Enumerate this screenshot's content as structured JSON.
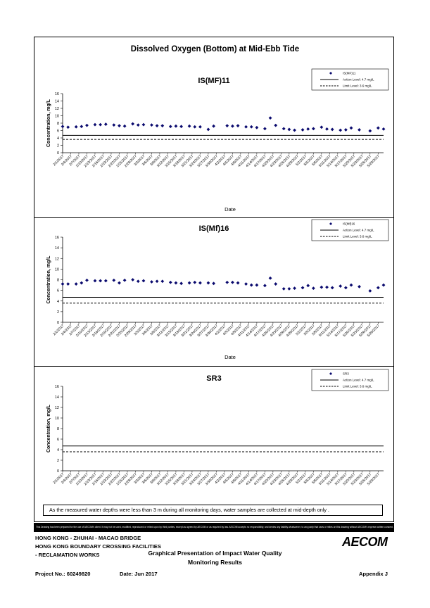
{
  "main_title": "Dissolved Oxygen (Bottom) at Mid-Ebb Tide",
  "note": "As the measured water depths were less than 3 m during all monitoring days, water samples are collected  at mid-depth only .",
  "disclaimer": "This Drawing has been prepared for the use of AECOM's client. It may not be used, modified, reproduced or relied upon by third parties, except as agreed by AECOM or as required by law. AECOM accepts no responsibility, and denies any liability whatsoever, to any party that uses or relies on this drawing without AECOM's express written consent.",
  "footer": {
    "line1": "HONG KONG - ZHUHAI - MACAO BRIDGE",
    "line2": "HONG KONG BOUNDARY CROSSING FACILITIES",
    "line3": "- RECLAMATION WORKS",
    "center1": "Graphical Presentation of Impact Water Quality",
    "center2": "Monitoring Results",
    "project": "Project No.: 60249820",
    "date": "Date: Jun 2017",
    "appendix": "Appendix J",
    "logo": "AECOM"
  },
  "colors": {
    "marker": "#0a0a6e",
    "line": "#000000"
  },
  "chart_data": [
    {
      "type": "scatter",
      "title": "IS(MF)11",
      "xlabel": "Date",
      "ylabel": "Concentration, mg/L",
      "ylim": [
        0,
        16
      ],
      "yticks": [
        0,
        2,
        4,
        6,
        8,
        10,
        12,
        14,
        16
      ],
      "x_tick_labels": [
        "2/1/2017",
        "2/4/2017",
        "2/7/2017",
        "2/10/2017",
        "2/13/2017",
        "2/16/2017",
        "2/19/2017",
        "2/22/2017",
        "2/25/2017",
        "2/28/2017",
        "3/3/2017",
        "3/6/2017",
        "3/9/2017",
        "3/12/2017",
        "3/15/2017",
        "3/18/2017",
        "3/21/2017",
        "3/24/2017",
        "3/27/2017",
        "3/30/2017",
        "4/2/2017",
        "4/5/2017",
        "4/8/2017",
        "4/11/2017",
        "4/14/2017",
        "4/17/2017",
        "4/20/2017",
        "4/23/2017",
        "4/26/2017",
        "4/29/2017",
        "5/2/2017",
        "5/5/2017",
        "5/8/2017",
        "5/11/2017",
        "5/14/2017",
        "5/17/2017",
        "5/20/2017",
        "5/23/2017",
        "5/26/2017",
        "5/29/2017"
      ],
      "legend": {
        "position": "top-right",
        "entries": [
          "IS(MF)11",
          "Action Level: 4.7 mg/L",
          "Limit Level: 3.6 mg/L"
        ]
      },
      "action_level": 4.7,
      "limit_level": 3.6,
      "series": [
        {
          "name": "IS(MF)11",
          "x": [
            "2/1/2017",
            "2/3/2017",
            "2/6/2017",
            "2/8/2017",
            "2/10/2017",
            "2/13/2017",
            "2/15/2017",
            "2/17/2017",
            "2/20/2017",
            "2/22/2017",
            "2/24/2017",
            "2/27/2017",
            "3/1/2017",
            "3/3/2017",
            "3/6/2017",
            "3/8/2017",
            "3/10/2017",
            "3/13/2017",
            "3/15/2017",
            "3/17/2017",
            "3/20/2017",
            "3/22/2017",
            "3/24/2017",
            "3/27/2017",
            "3/29/2017",
            "4/3/2017",
            "4/5/2017",
            "4/7/2017",
            "4/10/2017",
            "4/12/2017",
            "4/14/2017",
            "4/17/2017",
            "4/19/2017",
            "4/21/2017",
            "4/24/2017",
            "4/26/2017",
            "4/28/2017",
            "5/1/2017",
            "5/3/2017",
            "5/5/2017",
            "5/8/2017",
            "5/10/2017",
            "5/12/2017",
            "5/15/2017",
            "5/17/2017",
            "5/19/2017",
            "5/22/2017",
            "5/26/2017",
            "5/29/2017",
            "5/31/2017"
          ],
          "y": [
            7.1,
            6.9,
            7.0,
            7.1,
            7.4,
            7.6,
            7.6,
            7.7,
            7.5,
            7.3,
            7.2,
            7.8,
            7.5,
            7.6,
            7.5,
            7.3,
            7.3,
            7.1,
            7.2,
            7.1,
            7.2,
            7.0,
            7.0,
            6.3,
            7.2,
            7.3,
            7.2,
            7.3,
            7.0,
            7.0,
            6.8,
            6.5,
            9.4,
            7.4,
            6.5,
            6.3,
            6.1,
            6.2,
            6.4,
            6.5,
            6.9,
            6.4,
            6.3,
            6.1,
            6.2,
            6.7,
            6.2,
            5.9,
            6.7,
            6.4
          ]
        }
      ]
    },
    {
      "type": "scatter",
      "title": "IS(Mf)16",
      "xlabel": "Date",
      "ylabel": "Concentration, mg/L",
      "ylim": [
        0,
        16
      ],
      "yticks": [
        0,
        2,
        4,
        6,
        8,
        10,
        12,
        14,
        16
      ],
      "x_tick_labels": [
        "2/1/2017",
        "2/4/2017",
        "2/7/2017",
        "2/10/2017",
        "2/13/2017",
        "2/16/2017",
        "2/19/2017",
        "2/22/2017",
        "2/25/2017",
        "2/28/2017",
        "3/3/2017",
        "3/6/2017",
        "3/9/2017",
        "3/12/2017",
        "3/15/2017",
        "3/18/2017",
        "3/21/2017",
        "3/24/2017",
        "3/27/2017",
        "3/30/2017",
        "4/2/2017",
        "4/5/2017",
        "4/8/2017",
        "4/11/2017",
        "4/14/2017",
        "4/17/2017",
        "4/20/2017",
        "4/23/2017",
        "4/26/2017",
        "4/29/2017",
        "5/2/2017",
        "5/5/2017",
        "5/8/2017",
        "5/11/2017",
        "5/14/2017",
        "5/17/2017",
        "5/20/2017",
        "5/23/2017",
        "5/26/2017",
        "5/29/2017"
      ],
      "legend": {
        "position": "top-right",
        "entries": [
          "IS(Mf)16",
          "Action Level: 4.7 mg/L",
          "Limit Level: 3.6 mg/L"
        ]
      },
      "action_level": 4.7,
      "limit_level": 3.6,
      "series": [
        {
          "name": "IS(Mf)16",
          "x": [
            "2/1/2017",
            "2/3/2017",
            "2/6/2017",
            "2/8/2017",
            "2/10/2017",
            "2/13/2017",
            "2/15/2017",
            "2/17/2017",
            "2/20/2017",
            "2/22/2017",
            "2/24/2017",
            "2/27/2017",
            "3/1/2017",
            "3/3/2017",
            "3/6/2017",
            "3/8/2017",
            "3/10/2017",
            "3/13/2017",
            "3/15/2017",
            "3/17/2017",
            "3/20/2017",
            "3/22/2017",
            "3/24/2017",
            "3/27/2017",
            "3/29/2017",
            "4/3/2017",
            "4/5/2017",
            "4/7/2017",
            "4/10/2017",
            "4/12/2017",
            "4/14/2017",
            "4/17/2017",
            "4/19/2017",
            "4/21/2017",
            "4/24/2017",
            "4/26/2017",
            "4/28/2017",
            "5/1/2017",
            "5/3/2017",
            "5/5/2017",
            "5/8/2017",
            "5/10/2017",
            "5/12/2017",
            "5/15/2017",
            "5/17/2017",
            "5/19/2017",
            "5/22/2017",
            "5/26/2017",
            "5/29/2017",
            "5/31/2017"
          ],
          "y": [
            7.2,
            7.2,
            7.2,
            7.4,
            7.9,
            7.8,
            7.8,
            7.8,
            7.9,
            7.4,
            7.9,
            8.0,
            7.7,
            7.8,
            7.6,
            7.7,
            7.7,
            7.5,
            7.4,
            7.3,
            7.4,
            7.5,
            7.4,
            7.4,
            7.3,
            7.5,
            7.5,
            7.4,
            7.2,
            7.0,
            7.0,
            6.9,
            8.3,
            7.2,
            6.3,
            6.3,
            6.4,
            6.5,
            6.9,
            6.4,
            6.6,
            6.6,
            6.5,
            6.8,
            6.5,
            7.0,
            6.7,
            5.9,
            6.5,
            7.0
          ]
        }
      ]
    },
    {
      "type": "scatter",
      "title": "SR3",
      "xlabel": "",
      "ylabel": "Concentration, mg/L",
      "ylim": [
        0,
        16
      ],
      "yticks": [
        0,
        2,
        4,
        6,
        8,
        10,
        12,
        14,
        16
      ],
      "x_tick_labels": [
        "2/1/2017",
        "2/4/2017",
        "2/7/2017",
        "2/10/2017",
        "2/13/2017",
        "2/16/2017",
        "2/19/2017",
        "2/22/2017",
        "2/25/2017",
        "2/28/2017",
        "3/3/2017",
        "3/6/2017",
        "3/9/2017",
        "3/12/2017",
        "3/15/2017",
        "3/18/2017",
        "3/21/2017",
        "3/24/2017",
        "3/27/2017",
        "3/30/2017",
        "4/2/2017",
        "4/5/2017",
        "4/8/2017",
        "4/11/2017",
        "4/14/2017",
        "4/17/2017",
        "4/20/2017",
        "4/23/2017",
        "4/26/2017",
        "4/29/2017",
        "5/2/2017",
        "5/5/2017",
        "5/8/2017",
        "5/11/2017",
        "5/14/2017",
        "5/17/2017",
        "5/20/2017",
        "5/23/2017",
        "5/26/2017",
        "5/29/2017"
      ],
      "legend": {
        "position": "top-right",
        "entries": [
          "SR3",
          "Action Level: 4.7 mg/L",
          "Limit Level: 3.6 mg/L"
        ]
      },
      "action_level": 4.7,
      "limit_level": 3.6,
      "series": [
        {
          "name": "SR3",
          "x": [],
          "y": []
        }
      ]
    }
  ]
}
